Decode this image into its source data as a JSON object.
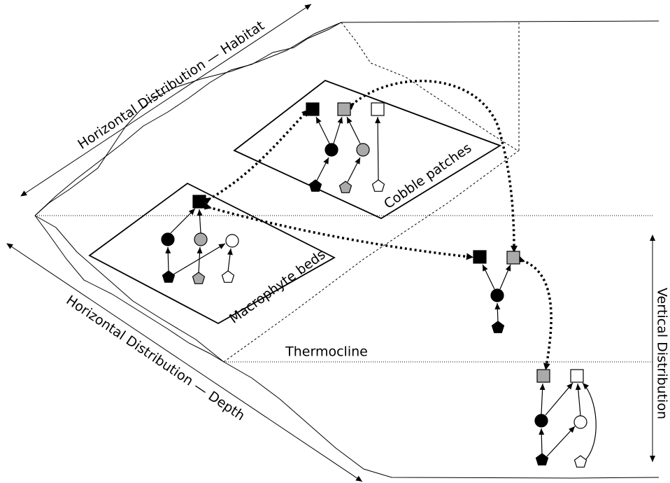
{
  "labels": {
    "habitat_axis": "Horizontal Distribution — Habitat",
    "depth_axis": "Horizontal Distribution — Depth",
    "vertical_axis": "Vertical Distribution",
    "thermocline": "Thermocline",
    "cobble": "Cobble patches",
    "macrophyte": "Macrophyte beds"
  }
}
